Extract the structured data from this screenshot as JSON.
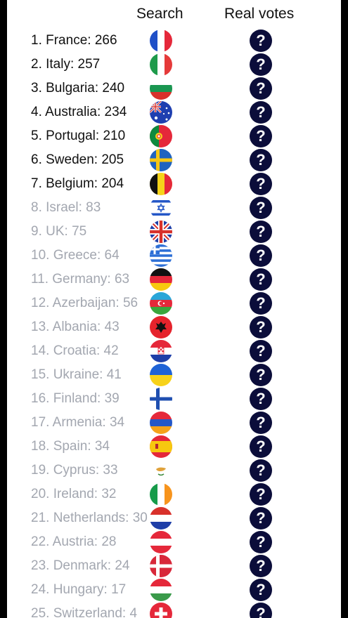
{
  "headers": {
    "search": "Search",
    "real_votes": "Real votes"
  },
  "colors": {
    "question_bg": "#0b0d3a",
    "dim_text": "#a3a7b0"
  },
  "question_glyph": "?",
  "rows": [
    {
      "label": "1. France: 266",
      "country": "france",
      "flag_icon": "france-flag-icon",
      "highlight": true
    },
    {
      "label": "2. Italy: 257",
      "country": "italy",
      "flag_icon": "italy-flag-icon",
      "highlight": true
    },
    {
      "label": "3. Bulgaria: 240",
      "country": "bulgaria",
      "flag_icon": "bulgaria-flag-icon",
      "highlight": true
    },
    {
      "label": "4. Australia: 234",
      "country": "australia",
      "flag_icon": "australia-flag-icon",
      "highlight": true
    },
    {
      "label": "5. Portugal: 210",
      "country": "portugal",
      "flag_icon": "portugal-flag-icon",
      "highlight": true
    },
    {
      "label": "6. Sweden: 205",
      "country": "sweden",
      "flag_icon": "sweden-flag-icon",
      "highlight": true
    },
    {
      "label": "7. Belgium: 204",
      "country": "belgium",
      "flag_icon": "belgium-flag-icon",
      "highlight": true
    },
    {
      "label": "8. Israel: 83",
      "country": "israel",
      "flag_icon": "israel-flag-icon",
      "highlight": false
    },
    {
      "label": "9. UK: 75",
      "country": "uk",
      "flag_icon": "uk-flag-icon",
      "highlight": false
    },
    {
      "label": "10. Greece: 64",
      "country": "greece",
      "flag_icon": "greece-flag-icon",
      "highlight": false
    },
    {
      "label": "11. Germany: 63",
      "country": "germany",
      "flag_icon": "germany-flag-icon",
      "highlight": false
    },
    {
      "label": "12. Azerbaijan: 56",
      "country": "azerbaijan",
      "flag_icon": "azerbaijan-flag-icon",
      "highlight": false
    },
    {
      "label": "13. Albania: 43",
      "country": "albania",
      "flag_icon": "albania-flag-icon",
      "highlight": false
    },
    {
      "label": "14. Croatia: 42",
      "country": "croatia",
      "flag_icon": "croatia-flag-icon",
      "highlight": false
    },
    {
      "label": "15. Ukraine: 41",
      "country": "ukraine",
      "flag_icon": "ukraine-flag-icon",
      "highlight": false
    },
    {
      "label": "16. Finland: 39",
      "country": "finland",
      "flag_icon": "finland-flag-icon",
      "highlight": false
    },
    {
      "label": "17. Armenia: 34",
      "country": "armenia",
      "flag_icon": "armenia-flag-icon",
      "highlight": false
    },
    {
      "label": "18. Spain: 34",
      "country": "spain",
      "flag_icon": "spain-flag-icon",
      "highlight": false
    },
    {
      "label": "19. Cyprus: 33",
      "country": "cyprus",
      "flag_icon": "cyprus-flag-icon",
      "highlight": false
    },
    {
      "label": "20. Ireland: 32",
      "country": "ireland",
      "flag_icon": "ireland-flag-icon",
      "highlight": false
    },
    {
      "label": "21. Netherlands: 30",
      "country": "netherlands",
      "flag_icon": "netherlands-flag-icon",
      "highlight": false
    },
    {
      "label": "22. Austria: 28",
      "country": "austria",
      "flag_icon": "austria-flag-icon",
      "highlight": false
    },
    {
      "label": "23. Denmark: 24",
      "country": "denmark",
      "flag_icon": "denmark-flag-icon",
      "highlight": false
    },
    {
      "label": "24. Hungary: 17",
      "country": "hungary",
      "flag_icon": "hungary-flag-icon",
      "highlight": false
    },
    {
      "label": "25. Switzerland: 4",
      "country": "switzerland",
      "flag_icon": "switzerland-flag-icon",
      "highlight": false
    }
  ]
}
